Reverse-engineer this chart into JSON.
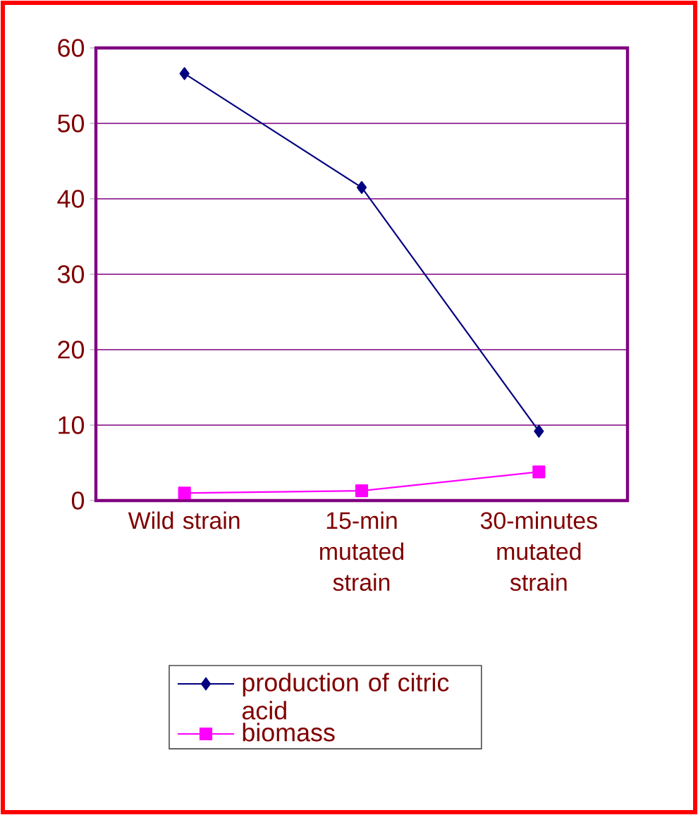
{
  "chart_data": {
    "type": "line",
    "categories": [
      "Wild strain",
      "15-min mutated strain",
      "30-minutes mutated strain"
    ],
    "series": [
      {
        "name": "production of citric acid",
        "color": "#000080",
        "marker": "diamond",
        "values": [
          56.6,
          41.5,
          9.2
        ]
      },
      {
        "name": "biomass",
        "color": "#ff00ff",
        "marker": "square",
        "values": [
          1.0,
          1.3,
          3.8
        ]
      }
    ],
    "ylim": [
      0,
      60
    ],
    "yticks": [
      0,
      10,
      20,
      30,
      40,
      50,
      60
    ],
    "grid": "y",
    "legend": "bottom",
    "line_style": "solid"
  }
}
